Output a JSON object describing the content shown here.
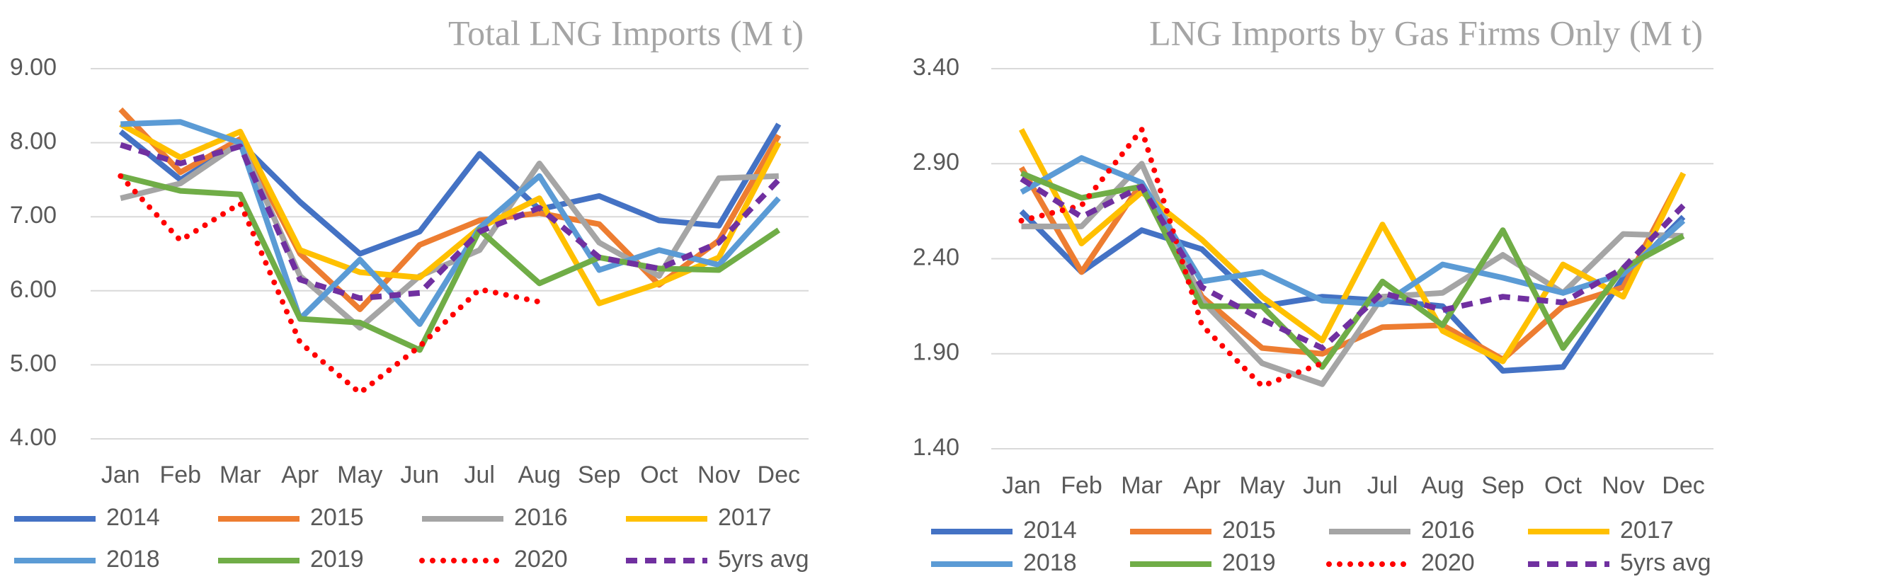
{
  "chart_data": [
    {
      "type": "line",
      "title": "Total LNG Imports (M t)",
      "categories": [
        "Jan",
        "Feb",
        "Mar",
        "Apr",
        "May",
        "Jun",
        "Jul",
        "Aug",
        "Sep",
        "Oct",
        "Nov",
        "Dec"
      ],
      "ylim": [
        4,
        9
      ],
      "yticks": [
        {
          "value": 4,
          "label": "4.00"
        },
        {
          "value": 5,
          "label": "5.00"
        },
        {
          "value": 6,
          "label": "6.00"
        },
        {
          "value": 7,
          "label": "7.00"
        },
        {
          "value": 8,
          "label": "8.00"
        },
        {
          "value": 9,
          "label": "9.00"
        }
      ],
      "grid": true,
      "legend": "bottom",
      "series": [
        {
          "name": "2014",
          "color": "#4472c4",
          "style": "solid",
          "values": [
            8.15,
            7.5,
            8.0,
            7.2,
            6.5,
            6.8,
            7.85,
            7.1,
            7.28,
            6.95,
            6.88,
            8.25
          ]
        },
        {
          "name": "2015",
          "color": "#ed7d31",
          "style": "solid",
          "values": [
            8.45,
            7.6,
            8.05,
            6.5,
            5.75,
            6.62,
            6.95,
            7.05,
            6.9,
            6.08,
            6.68,
            8.1
          ]
        },
        {
          "name": "2016",
          "color": "#a5a5a5",
          "style": "solid",
          "values": [
            7.25,
            7.45,
            8.0,
            6.2,
            5.5,
            6.2,
            6.55,
            7.72,
            6.65,
            6.2,
            7.52,
            7.55
          ]
        },
        {
          "name": "2017",
          "color": "#ffc000",
          "style": "solid",
          "values": [
            8.25,
            7.8,
            8.15,
            6.55,
            6.25,
            6.18,
            6.85,
            7.25,
            5.83,
            6.1,
            6.45,
            8.0
          ]
        },
        {
          "name": "2018",
          "color": "#5b9bd5",
          "style": "solid",
          "values": [
            8.25,
            8.28,
            8.0,
            5.62,
            6.42,
            5.55,
            6.85,
            7.55,
            6.28,
            6.55,
            6.35,
            7.25
          ]
        },
        {
          "name": "2019",
          "color": "#70ad47",
          "style": "solid",
          "values": [
            7.55,
            7.35,
            7.3,
            5.62,
            5.57,
            5.2,
            6.82,
            6.1,
            6.45,
            6.3,
            6.28,
            6.82
          ]
        },
        {
          "name": "2020",
          "color": "#ff0000",
          "style": "dotted",
          "values": [
            7.55,
            6.68,
            7.18,
            5.3,
            4.62,
            5.25,
            6.02,
            5.85,
            null,
            null,
            null,
            null
          ]
        },
        {
          "name": "5yrs avg",
          "color": "#7030a0",
          "style": "dashed",
          "values": [
            7.97,
            7.72,
            7.95,
            6.15,
            5.9,
            5.97,
            6.8,
            7.12,
            6.45,
            6.3,
            6.65,
            7.5
          ]
        }
      ]
    },
    {
      "type": "line",
      "title": "LNG Imports by Gas Firms Only (M t)",
      "categories": [
        "Jan",
        "Feb",
        "Mar",
        "Apr",
        "May",
        "Jun",
        "Jul",
        "Aug",
        "Sep",
        "Oct",
        "Nov",
        "Dec"
      ],
      "ylim": [
        1.4,
        3.4
      ],
      "yticks": [
        {
          "value": 1.4,
          "label": "1.40"
        },
        {
          "value": 1.9,
          "label": "1.90"
        },
        {
          "value": 2.4,
          "label": "2.40"
        },
        {
          "value": 2.9,
          "label": "2.90"
        },
        {
          "value": 3.4,
          "label": "3.40"
        }
      ],
      "grid": true,
      "legend": "bottom",
      "series": [
        {
          "name": "2014",
          "color": "#4472c4",
          "style": "solid",
          "values": [
            2.65,
            2.33,
            2.55,
            2.45,
            2.15,
            2.2,
            2.18,
            2.15,
            1.81,
            1.83,
            2.3,
            2.62
          ]
        },
        {
          "name": "2015",
          "color": "#ed7d31",
          "style": "solid",
          "values": [
            2.88,
            2.33,
            2.8,
            2.2,
            1.93,
            1.9,
            2.04,
            2.05,
            1.87,
            2.15,
            2.25,
            2.85
          ]
        },
        {
          "name": "2016",
          "color": "#a5a5a5",
          "style": "solid",
          "values": [
            2.57,
            2.57,
            2.9,
            2.18,
            1.85,
            1.74,
            2.2,
            2.22,
            2.42,
            2.22,
            2.53,
            2.52
          ]
        },
        {
          "name": "2017",
          "color": "#ffc000",
          "style": "solid",
          "values": [
            3.08,
            2.48,
            2.75,
            2.5,
            2.2,
            1.97,
            2.58,
            2.02,
            1.86,
            2.37,
            2.2,
            2.85
          ]
        },
        {
          "name": "2018",
          "color": "#5b9bd5",
          "style": "solid",
          "values": [
            2.75,
            2.93,
            2.8,
            2.28,
            2.33,
            2.18,
            2.16,
            2.37,
            2.3,
            2.22,
            2.32,
            2.6
          ]
        },
        {
          "name": "2019",
          "color": "#70ad47",
          "style": "solid",
          "values": [
            2.85,
            2.72,
            2.78,
            2.15,
            2.15,
            1.83,
            2.28,
            2.05,
            2.55,
            1.93,
            2.35,
            2.52
          ]
        },
        {
          "name": "2020",
          "color": "#ff0000",
          "style": "dotted",
          "values": [
            2.6,
            2.68,
            3.08,
            2.05,
            1.73,
            1.85,
            null,
            null,
            null,
            null,
            null,
            null
          ]
        },
        {
          "name": "5yrs avg",
          "color": "#7030a0",
          "style": "dashed",
          "values": [
            2.82,
            2.62,
            2.78,
            2.25,
            2.08,
            1.93,
            2.22,
            2.13,
            2.2,
            2.17,
            2.35,
            2.68
          ]
        }
      ]
    }
  ]
}
